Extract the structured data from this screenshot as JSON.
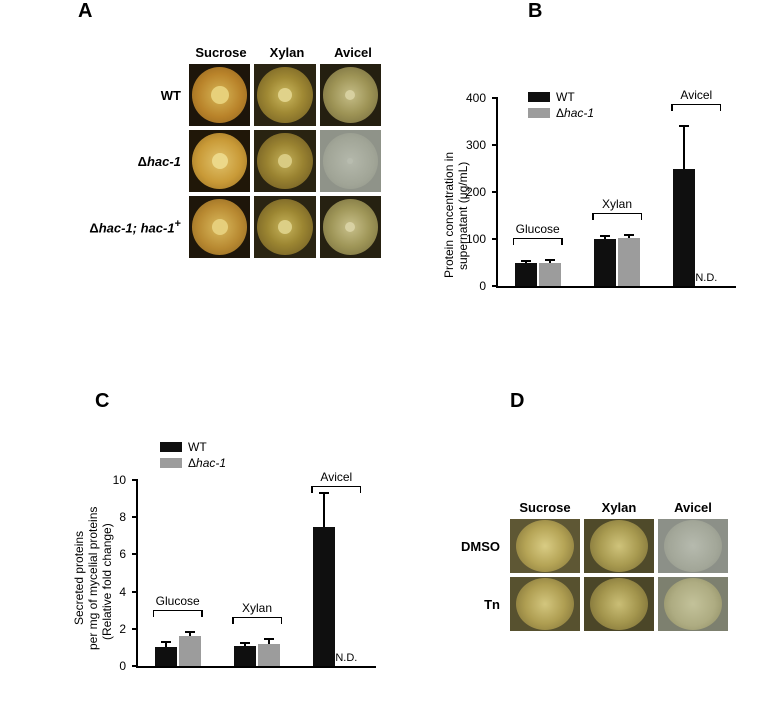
{
  "panelA": {
    "letter": "A",
    "columns": [
      "Sucrose",
      "Xylan",
      "Avicel"
    ],
    "rows": [
      {
        "label_html": "WT"
      },
      {
        "label_html": "Δ<span class='ital'>hac-1</span>"
      },
      {
        "label_html": "Δ<span class='ital'>hac-1; hac-1</span><sup>+</sup>"
      }
    ],
    "plate_styles": [
      [
        {
          "bg": "#1d150a",
          "dish": "#c79a3a",
          "dish_grad": "radial-gradient(circle,#d6b657 0%,#b9832a 55%,#8c5f1c 100%)",
          "center": "#e7d07a",
          "center_size": 18
        },
        {
          "bg": "#2a2413",
          "dish": "#8e7a38",
          "dish_grad": "radial-gradient(circle,#cbb85f 0%,#a08934 45%,#6c5820 100%)",
          "center": "#e0d28a",
          "center_size": 14
        },
        {
          "bg": "#241f10",
          "dish": "#7e7543",
          "dish_grad": "radial-gradient(circle,#c5bd87 0%,#9d9355 50%,#6e653a 100%)",
          "center": "#d7d0a0",
          "center_size": 10
        }
      ],
      [
        {
          "bg": "#201708",
          "dish": "#caa043",
          "dish_grad": "radial-gradient(circle,#e0c26b 0%,#c99a37 55%,#936b22 100%)",
          "center": "#ecd889",
          "center_size": 16
        },
        {
          "bg": "#292311",
          "dish": "#8a7735",
          "dish_grad": "radial-gradient(circle,#c3b059 0%,#9a8331 45%,#675320 100%)",
          "center": "#d9cb82",
          "center_size": 14
        },
        {
          "bg": "#8f9389",
          "dish": "#a7ac9e",
          "dish_grad": "radial-gradient(circle,#b4b8ab 0%,#a1a597 60%,#8e9286 100%)",
          "center": "#b8bcaf",
          "center_size": 6
        }
      ],
      [
        {
          "bg": "#1e160a",
          "dish": "#c2963a",
          "dish_grad": "radial-gradient(circle,#d9ba5e 0%,#b88931 55%,#8a611f 100%)",
          "center": "#e6cf7c",
          "center_size": 16
        },
        {
          "bg": "#2a2412",
          "dish": "#8c7936",
          "dish_grad": "radial-gradient(circle,#c6b35b 0%,#9c8632 45%,#695521 100%)",
          "center": "#dccf86",
          "center_size": 14
        },
        {
          "bg": "#262111",
          "dish": "#807746",
          "dish_grad": "radial-gradient(circle,#c8c08b 0%,#9f9658 50%,#716839 100%)",
          "center": "#d8d1a3",
          "center_size": 10
        }
      ]
    ]
  },
  "panelB": {
    "letter": "B",
    "y_axis_title_line1": "Protein concentration in",
    "y_axis_title_line2": "supernatant (μg/mL)",
    "y_ticks": [
      0,
      100,
      200,
      300,
      400
    ],
    "y_max": 400,
    "legend": [
      {
        "label": "WT",
        "color": "#0f0f0f"
      },
      {
        "label_html": "Δ<span style='font-style:italic'>hac-1</span>",
        "color": "#9c9c9c"
      }
    ],
    "groups": [
      {
        "label": "Glucose",
        "bars": [
          {
            "val": 48,
            "err": 5,
            "color": "black"
          },
          {
            "val": 50,
            "err": 5,
            "color": "grey"
          }
        ]
      },
      {
        "label": "Xylan",
        "bars": [
          {
            "val": 100,
            "err": 6,
            "color": "black"
          },
          {
            "val": 103,
            "err": 6,
            "color": "grey"
          }
        ]
      },
      {
        "label": "Avicel",
        "bars": [
          {
            "val": 248,
            "err": 92,
            "color": "black"
          },
          {
            "val": 0,
            "err": 0,
            "color": "grey",
            "nd": true
          }
        ]
      }
    ],
    "nd_label": "N.D."
  },
  "panelC": {
    "letter": "C",
    "y_axis_title_line1": "Secreted proteins",
    "y_axis_title_line2": "per mg of mycelial proteins",
    "y_axis_title_line3": "(Relative fold change)",
    "y_ticks": [
      0,
      2,
      4,
      6,
      8,
      10
    ],
    "y_max": 10,
    "legend": [
      {
        "label": "WT",
        "color": "#0f0f0f"
      },
      {
        "label_html": "Δ<span style='font-style:italic'>hac-1</span>",
        "color": "#9c9c9c"
      }
    ],
    "groups": [
      {
        "label": "Glucose",
        "bars": [
          {
            "val": 1.0,
            "err": 0.3,
            "color": "black"
          },
          {
            "val": 1.6,
            "err": 0.25,
            "color": "grey"
          }
        ]
      },
      {
        "label": "Xylan",
        "bars": [
          {
            "val": 1.1,
            "err": 0.15,
            "color": "black"
          },
          {
            "val": 1.2,
            "err": 0.25,
            "color": "grey"
          }
        ]
      },
      {
        "label": "Avicel",
        "bars": [
          {
            "val": 7.5,
            "err": 1.8,
            "color": "black"
          },
          {
            "val": 0,
            "err": 0,
            "color": "grey",
            "nd": true
          }
        ]
      }
    ],
    "nd_label": "N.D."
  },
  "panelD": {
    "letter": "D",
    "columns": [
      "Sucrose",
      "Xylan",
      "Avicel"
    ],
    "rows": [
      {
        "label": "DMSO"
      },
      {
        "label": "Tn"
      }
    ],
    "plate_styles": [
      [
        {
          "bg": "#5e5734",
          "dish_grad": "radial-gradient(circle,#d9cc84 0%,#b5a456 50%,#7e6f35 100%)"
        },
        {
          "bg": "#4f4a2a",
          "dish_grad": "radial-gradient(circle,#cfc37b 0%,#a89a50 50%,#756832 100%)"
        },
        {
          "bg": "#8c9088",
          "dish_grad": "radial-gradient(circle,#b6baae 0%,#a3a799 60%,#8f9387 100%)"
        }
      ],
      [
        {
          "bg": "#57512f",
          "dish_grad": "radial-gradient(circle,#d3c67e 0%,#af9e52 50%,#796b33 100%)"
        },
        {
          "bg": "#4b4628",
          "dish_grad": "radial-gradient(circle,#cabe76 0%,#a3954d 50%,#716430 100%)"
        },
        {
          "bg": "#7d806f",
          "dish_grad": "radial-gradient(circle,#c3c29a 0%,#aeac82 55%,#8a885f 100%)"
        }
      ]
    ]
  }
}
